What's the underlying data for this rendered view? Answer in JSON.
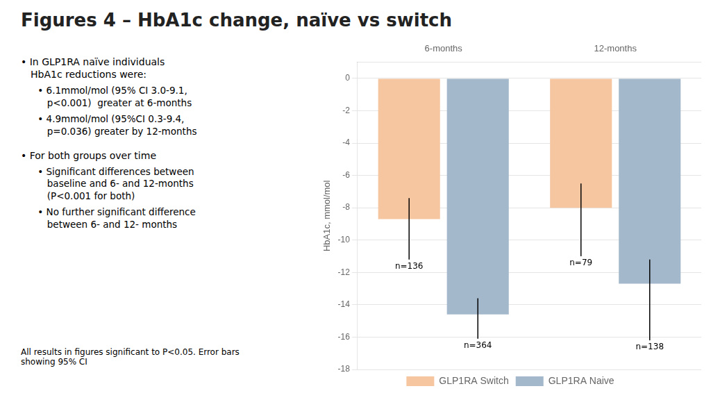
{
  "chart_data": {
    "type": "bar",
    "title": "Figures 4 – HbA1c change, naïve vs switch",
    "categories": [
      "6-months",
      "12-months"
    ],
    "series": [
      {
        "name": "GLP1RA Switch",
        "color": "#F5C6A0",
        "values": [
          -8.7,
          -8.0
        ],
        "error_plus": [
          1.3,
          1.5
        ],
        "error_minus": [
          2.5,
          3.0
        ],
        "n_labels": [
          "n=136",
          "n=79"
        ]
      },
      {
        "name": "GLP1RA Naive",
        "color": "#A4B8CB",
        "values": [
          -14.6,
          -12.7
        ],
        "error_plus": [
          1.0,
          1.5
        ],
        "error_minus": [
          1.5,
          3.5
        ],
        "n_labels": [
          "n=364",
          "n=138"
        ]
      }
    ],
    "ylabel": "HbA1c, mmol/mol",
    "ylim": [
      -18,
      1.0
    ],
    "yticks": [
      0,
      -2,
      -4,
      -6,
      -8,
      -10,
      -12,
      -14,
      -16,
      -18
    ],
    "grid": true,
    "legend": "bottom",
    "annotations": [
      {
        "text": "• In GLP1RA naïve individuals\nHbA1c reductions were:",
        "items": [
          "• 6.1mmol/mol (95% CI 3.0-9.1,\np<0.001)  greater at 6-months",
          "• 4.9mmol/mol (95%CI 0.3-9.4,\np=0.036) greater by 12-months"
        ]
      },
      {
        "text": "• For both groups over time",
        "items": [
          "• Significant differences between\nbaseline and 6- and 12-months\n(P<0.001 for both)",
          "• No further significant difference\nbetween 6- and 12- months"
        ]
      }
    ],
    "footnote": "All results in figures significant to P<0.05. Error bars\nshowing 95% CI"
  }
}
